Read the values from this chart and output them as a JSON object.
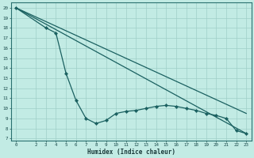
{
  "xlabel": "Humidex (Indice chaleur)",
  "bg_color": "#c2ebe4",
  "grid_color": "#9fcfc8",
  "line_color": "#1a6060",
  "xlim": [
    -0.5,
    23.5
  ],
  "ylim": [
    6.8,
    20.5
  ],
  "xticks": [
    0,
    2,
    3,
    4,
    5,
    6,
    7,
    8,
    9,
    10,
    11,
    12,
    13,
    14,
    15,
    16,
    17,
    18,
    19,
    20,
    21,
    22,
    23
  ],
  "yticks": [
    7,
    8,
    9,
    10,
    11,
    12,
    13,
    14,
    15,
    16,
    17,
    18,
    19,
    20
  ],
  "line1_x": [
    0,
    23
  ],
  "line1_y": [
    20.0,
    7.5
  ],
  "line2_x": [
    0,
    23
  ],
  "line2_y": [
    20.0,
    9.5
  ],
  "line3_x": [
    0,
    3,
    4,
    5,
    6,
    7,
    8,
    9,
    10,
    11,
    12,
    13,
    14,
    15,
    16,
    17,
    18,
    19,
    20,
    21,
    22,
    23
  ],
  "line3_y": [
    20.0,
    18.0,
    17.5,
    13.5,
    10.8,
    9.0,
    8.5,
    8.8,
    9.5,
    9.7,
    9.8,
    10.0,
    10.2,
    10.3,
    10.2,
    10.0,
    9.8,
    9.5,
    9.3,
    9.0,
    7.8,
    7.5
  ]
}
